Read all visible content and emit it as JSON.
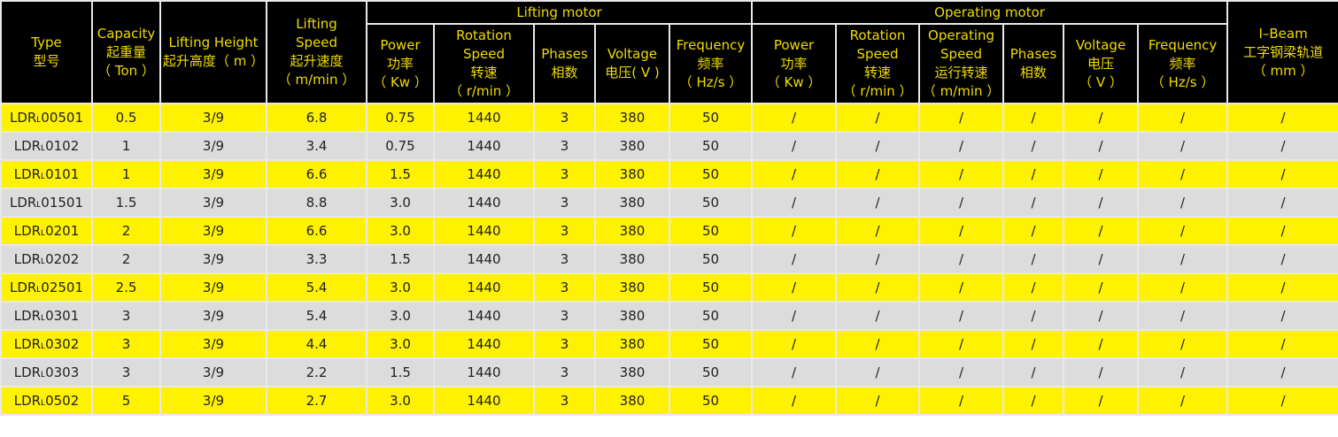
{
  "colors": {
    "header_bg": "#000000",
    "header_text": "#f0dc00",
    "row_yellow": "#fff200",
    "row_gray": "#dcdcdc"
  },
  "headers": {
    "type": [
      "Type",
      "型号"
    ],
    "capacity": [
      "Capacity",
      "起重量",
      "（ Ton ）"
    ],
    "lifting_height": [
      "Lifting Height",
      "起升高度（ m ）"
    ],
    "lifting_speed": [
      "Lifting",
      "Speed",
      "起升速度",
      "（ m/min ）"
    ],
    "lifting_motor": "Lifting motor",
    "operating_motor": "Operating motor",
    "ibeam": [
      "I–Beam",
      "工字钢梁轨道",
      "（ mm ）"
    ],
    "lm": [
      [
        "Power",
        "功率",
        "（ Kw ）"
      ],
      [
        "Rotation",
        "Speed",
        "转速",
        "（ r/min ）"
      ],
      [
        "Phases",
        "相数"
      ],
      [
        "Voltage",
        "电压( V )"
      ],
      [
        "Frequency",
        "频率",
        "（ Hz/s ）"
      ]
    ],
    "om": [
      [
        "Power",
        "功率",
        "（ Kw ）"
      ],
      [
        "Rotation",
        "Speed",
        "转速",
        "（ r/min ）"
      ],
      [
        "Operating",
        "Speed",
        "运行转速",
        "（ m/min ）"
      ],
      [
        "Phases",
        "相数"
      ],
      [
        "Voltage",
        "电压",
        "（ V ）"
      ],
      [
        "Frequency",
        "频率",
        "（ Hz/s ）"
      ]
    ]
  },
  "rows": [
    [
      "LDR˪00501",
      "0.5",
      "3/9",
      "6.8",
      "0.75",
      "1440",
      "3",
      "380",
      "50",
      "/",
      "/",
      "/",
      "/",
      "/",
      "/",
      "/"
    ],
    [
      "LDR˪0102",
      "1",
      "3/9",
      "3.4",
      "0.75",
      "1440",
      "3",
      "380",
      "50",
      "/",
      "/",
      "/",
      "/",
      "/",
      "/",
      "/"
    ],
    [
      "LDR˪0101",
      "1",
      "3/9",
      "6.6",
      "1.5",
      "1440",
      "3",
      "380",
      "50",
      "/",
      "/",
      "/",
      "/",
      "/",
      "/",
      "/"
    ],
    [
      "LDR˪01501",
      "1.5",
      "3/9",
      "8.8",
      "3.0",
      "1440",
      "3",
      "380",
      "50",
      "/",
      "/",
      "/",
      "/",
      "/",
      "/",
      "/"
    ],
    [
      "LDR˪0201",
      "2",
      "3/9",
      "6.6",
      "3.0",
      "1440",
      "3",
      "380",
      "50",
      "/",
      "/",
      "/",
      "/",
      "/",
      "/",
      "/"
    ],
    [
      "LDR˪0202",
      "2",
      "3/9",
      "3.3",
      "1.5",
      "1440",
      "3",
      "380",
      "50",
      "/",
      "/",
      "/",
      "/",
      "/",
      "/",
      "/"
    ],
    [
      "LDR˪02501",
      "2.5",
      "3/9",
      "5.4",
      "3.0",
      "1440",
      "3",
      "380",
      "50",
      "/",
      "/",
      "/",
      "/",
      "/",
      "/",
      "/"
    ],
    [
      "LDR˪0301",
      "3",
      "3/9",
      "5.4",
      "3.0",
      "1440",
      "3",
      "380",
      "50",
      "/",
      "/",
      "/",
      "/",
      "/",
      "/",
      "/"
    ],
    [
      "LDR˪0302",
      "3",
      "3/9",
      "4.4",
      "3.0",
      "1440",
      "3",
      "380",
      "50",
      "/",
      "/",
      "/",
      "/",
      "/",
      "/",
      "/"
    ],
    [
      "LDR˪0303",
      "3",
      "3/9",
      "2.2",
      "1.5",
      "1440",
      "3",
      "380",
      "50",
      "/",
      "/",
      "/",
      "/",
      "/",
      "/",
      "/"
    ],
    [
      "LDR˪0502",
      "5",
      "3/9",
      "2.7",
      "3.0",
      "1440",
      "3",
      "380",
      "50",
      "/",
      "/",
      "/",
      "/",
      "/",
      "/",
      "/"
    ]
  ]
}
